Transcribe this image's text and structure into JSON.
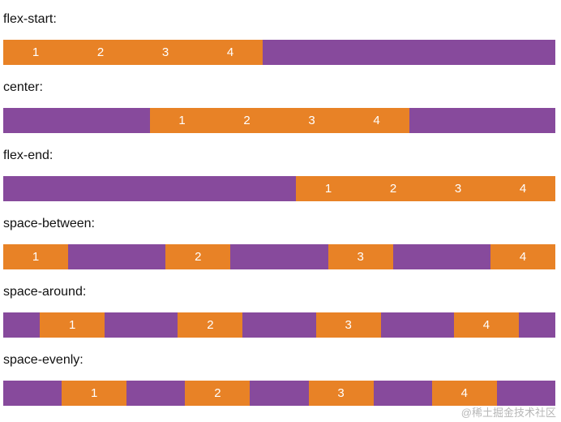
{
  "rows": [
    {
      "label": "flex-start:",
      "justify": "flex-start",
      "items": [
        "1",
        "2",
        "3",
        "4"
      ]
    },
    {
      "label": "center:",
      "justify": "center",
      "items": [
        "1",
        "2",
        "3",
        "4"
      ]
    },
    {
      "label": "flex-end:",
      "justify": "flex-end",
      "items": [
        "1",
        "2",
        "3",
        "4"
      ]
    },
    {
      "label": "space-between:",
      "justify": "space-between",
      "items": [
        "1",
        "2",
        "3",
        "4"
      ]
    },
    {
      "label": "space-around:",
      "justify": "space-around",
      "items": [
        "1",
        "2",
        "3",
        "4"
      ]
    },
    {
      "label": "space-evenly:",
      "justify": "space-evenly",
      "items": [
        "1",
        "2",
        "3",
        "4"
      ]
    }
  ],
  "watermark": "@稀土掘金技术社区",
  "colors": {
    "container": "#874a9c",
    "item": "#e88226",
    "item_text": "#ffffff",
    "label_text": "#111111"
  }
}
